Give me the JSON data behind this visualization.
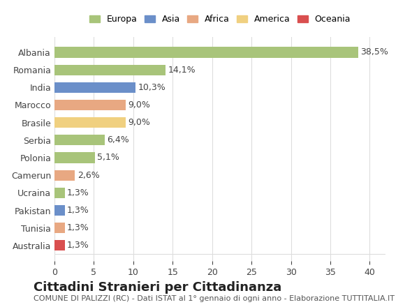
{
  "countries": [
    "Albania",
    "Romania",
    "India",
    "Marocco",
    "Brasile",
    "Serbia",
    "Polonia",
    "Camerun",
    "Ucraina",
    "Pakistan",
    "Tunisia",
    "Australia"
  ],
  "values": [
    38.5,
    14.1,
    10.3,
    9.0,
    9.0,
    6.4,
    5.1,
    2.6,
    1.3,
    1.3,
    1.3,
    1.3
  ],
  "labels": [
    "38,5%",
    "14,1%",
    "10,3%",
    "9,0%",
    "9,0%",
    "6,4%",
    "5,1%",
    "2,6%",
    "1,3%",
    "1,3%",
    "1,3%",
    "1,3%"
  ],
  "colors": [
    "#a8c47a",
    "#a8c47a",
    "#6b8fc9",
    "#e8a882",
    "#f0d080",
    "#a8c47a",
    "#a8c47a",
    "#e8a882",
    "#a8c47a",
    "#6b8fc9",
    "#e8a882",
    "#d94f4f"
  ],
  "continents": [
    "Europa",
    "Asia",
    "Africa",
    "America",
    "Oceania"
  ],
  "legend_colors": [
    "#a8c47a",
    "#6b8fc9",
    "#e8a882",
    "#f0d080",
    "#d94f4f"
  ],
  "title": "Cittadini Stranieri per Cittadinanza",
  "subtitle": "COMUNE DI PALIZZI (RC) - Dati ISTAT al 1° gennaio di ogni anno - Elaborazione TUTTITALIA.IT",
  "xlim": [
    0,
    42
  ],
  "xticks": [
    0,
    5,
    10,
    15,
    20,
    25,
    30,
    35,
    40
  ],
  "background_color": "#ffffff",
  "grid_color": "#dddddd",
  "bar_height": 0.6,
  "label_fontsize": 9,
  "tick_fontsize": 9,
  "title_fontsize": 13,
  "subtitle_fontsize": 8
}
